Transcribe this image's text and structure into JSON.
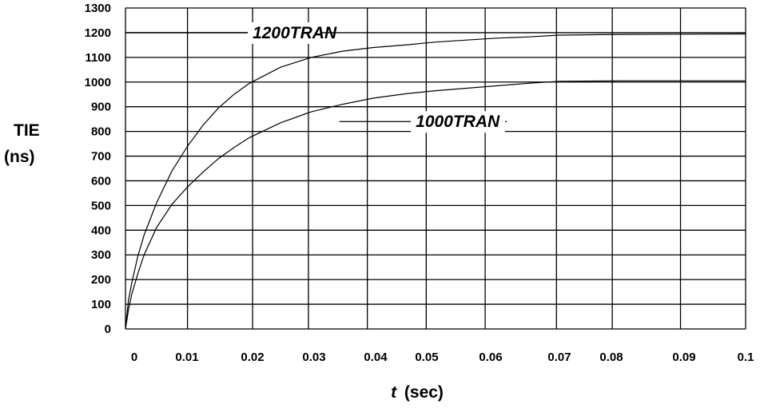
{
  "chart_data": {
    "type": "line",
    "xlabel_italic": "t",
    "xlabel_unit": "(sec)",
    "ylabel_line1": "TIE",
    "ylabel_line2": "(ns)",
    "xlim": [
      0,
      0.1
    ],
    "ylim": [
      0,
      1300
    ],
    "grid": true,
    "x_ticks": [
      0,
      0.01,
      0.02,
      0.03,
      0.04,
      0.05,
      0.06,
      0.07,
      0.08,
      0.09,
      0.1
    ],
    "x_tick_labels": [
      "0",
      "0.01",
      "0.02",
      "0.03",
      "0.04",
      "0.05",
      "0.06",
      "0.07",
      "0.08",
      "0.09",
      "0.1"
    ],
    "y_ticks": [
      0,
      100,
      200,
      300,
      400,
      500,
      600,
      700,
      800,
      900,
      1000,
      1100,
      1200,
      1300
    ],
    "y_tick_labels": [
      "0",
      "100",
      "200",
      "300",
      "400",
      "500",
      "600",
      "700",
      "800",
      "900",
      "1000",
      "1100",
      "1200",
      "1300"
    ],
    "series": [
      {
        "name": "1200TRAN",
        "x": [
          0,
          0.0005,
          0.001,
          0.002,
          0.003,
          0.005,
          0.0075,
          0.01,
          0.0125,
          0.015,
          0.0175,
          0.02,
          0.025,
          0.03,
          0.035,
          0.04,
          0.045,
          0.05,
          0.055,
          0.06,
          0.065,
          0.07,
          0.08,
          0.09,
          0.1
        ],
        "values": [
          0,
          120,
          185,
          295,
          380,
          510,
          640,
          740,
          825,
          895,
          950,
          995,
          1060,
          1100,
          1125,
          1140,
          1150,
          1162,
          1170,
          1178,
          1183,
          1190,
          1193,
          1194,
          1195
        ]
      },
      {
        "name": "1000TRAN",
        "x": [
          0,
          0.0005,
          0.001,
          0.002,
          0.003,
          0.005,
          0.0075,
          0.01,
          0.0125,
          0.015,
          0.0175,
          0.02,
          0.025,
          0.03,
          0.035,
          0.04,
          0.045,
          0.05,
          0.055,
          0.06,
          0.065,
          0.07,
          0.08,
          0.09,
          0.1
        ],
        "values": [
          0,
          80,
          140,
          225,
          300,
          410,
          505,
          575,
          635,
          690,
          735,
          775,
          835,
          880,
          910,
          935,
          952,
          965,
          975,
          985,
          995,
          1003,
          1005,
          1005,
          1005
        ]
      }
    ],
    "labels": [
      {
        "text": "1200TRAN",
        "series": "1200TRAN",
        "at_x": 0.0205,
        "at_y": 1200,
        "line_from_x": 0.0,
        "line_to_x": 0.0315
      },
      {
        "text": "1000TRAN",
        "series": "1000TRAN",
        "at_x": 0.0468,
        "at_y": 840,
        "line_from_x": 0.0345,
        "line_to_x": 0.0615
      }
    ]
  }
}
